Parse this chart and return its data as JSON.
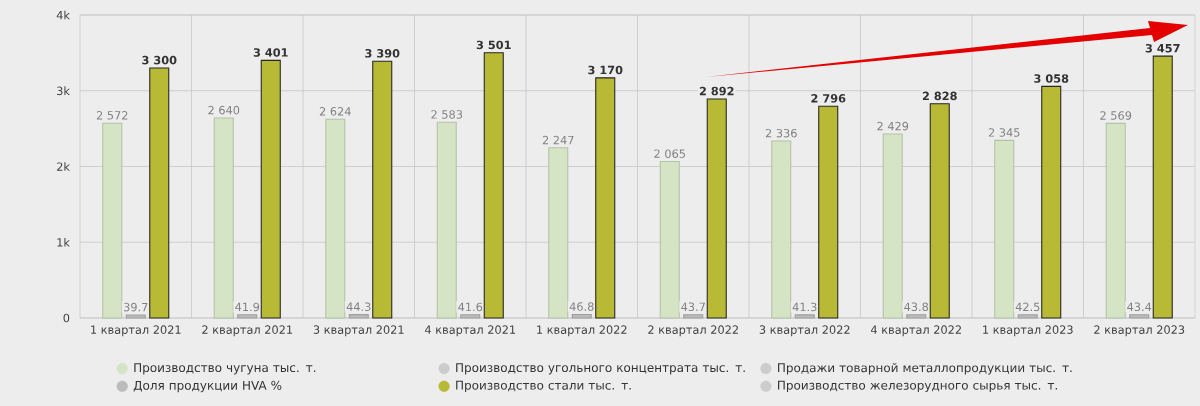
{
  "chart_data": {
    "type": "bar",
    "categories": [
      "1 квартал 2021",
      "2 квартал 2021",
      "3 квартал 2021",
      "4 квартал 2021",
      "1 квартал 2022",
      "2 квартал 2022",
      "3 квартал 2022",
      "4 квартал 2022",
      "1 квартал 2023",
      "2 квартал 2023"
    ],
    "series": [
      {
        "name": "Производство чугуна тыс. т.",
        "color": "#d4e4c4",
        "values": [
          2572,
          2640,
          2624,
          2583,
          2247,
          2065,
          2336,
          2429,
          2345,
          2569
        ],
        "value_labels": [
          "2 572",
          "2 640",
          "2 624",
          "2 583",
          "2 247",
          "2 065",
          "2 336",
          "2 429",
          "2 345",
          "2 569"
        ]
      },
      {
        "name": "Производство угольного концентрата тыс. т.",
        "color": "#cccccc",
        "values": [
          null,
          null,
          null,
          null,
          null,
          null,
          null,
          null,
          null,
          null
        ]
      },
      {
        "name": "Продажи товарной металлопродукции тыс. т.",
        "color": "#cccccc",
        "values": [
          null,
          null,
          null,
          null,
          null,
          null,
          null,
          null,
          null,
          null
        ]
      },
      {
        "name": "Доля продукции HVA %",
        "color": "#bbbbbb",
        "values": [
          39.7,
          41.9,
          44.3,
          41.6,
          46.8,
          43.7,
          41.3,
          43.8,
          42.5,
          43.4
        ],
        "value_labels": [
          "39.7",
          "41.9",
          "44.3",
          "41.6",
          "46.8",
          "43.7",
          "41.3",
          "43.8",
          "42.5",
          "43.4"
        ]
      },
      {
        "name": "Производство стали тыс. т.",
        "color": "#b8b935",
        "values": [
          3300,
          3401,
          3390,
          3501,
          3170,
          2892,
          2796,
          2828,
          3058,
          3457
        ],
        "value_labels": [
          "3 300",
          "3 401",
          "3 390",
          "3 501",
          "3 170",
          "2 892",
          "2 796",
          "2 828",
          "3 058",
          "3 457"
        ]
      },
      {
        "name": "Производство железорудного сырья тыс. т.",
        "color": "#cccccc",
        "values": [
          null,
          null,
          null,
          null,
          null,
          null,
          null,
          null,
          null,
          null
        ]
      }
    ],
    "ylim": [
      0,
      4000
    ],
    "yticks": [
      0,
      {
        "value": 1000,
        "label": "1k"
      },
      {
        "value": 2000,
        "label": "2k"
      },
      {
        "value": 3000,
        "label": "3k"
      },
      {
        "value": 4000,
        "label": "4k"
      }
    ],
    "grid": true,
    "legend": "bottom"
  }
}
